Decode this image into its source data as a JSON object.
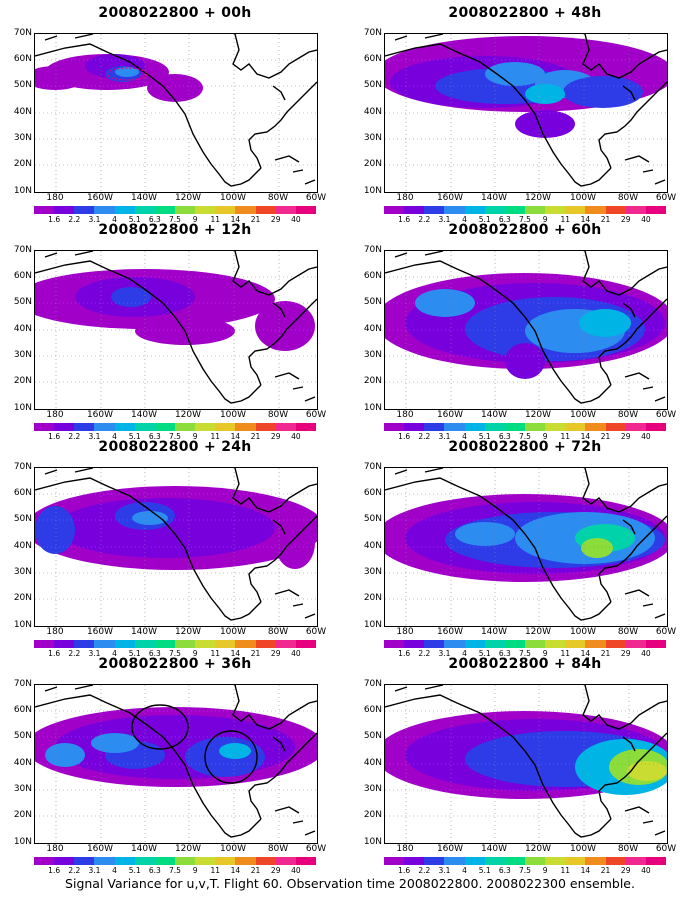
{
  "panels": [
    {
      "title": "2008022800 + 00h",
      "id": "p00"
    },
    {
      "title": "2008022800 + 48h",
      "id": "p48"
    },
    {
      "title": "2008022800 + 12h",
      "id": "p12"
    },
    {
      "title": "2008022800 + 60h",
      "id": "p60"
    },
    {
      "title": "2008022800 + 24h",
      "id": "p24"
    },
    {
      "title": "2008022800 + 72h",
      "id": "p72"
    },
    {
      "title": "2008022800 + 36h",
      "id": "p36"
    },
    {
      "title": "2008022800 + 84h",
      "id": "p84"
    }
  ],
  "lat_labels": [
    "70N",
    "60N",
    "50N",
    "40N",
    "30N",
    "20N",
    "10N"
  ],
  "lon_labels": [
    "180",
    "160W",
    "140W",
    "120W",
    "100W",
    "80W",
    "60W"
  ],
  "colorbar": {
    "labels": [
      "1.6",
      "2.2",
      "3.1",
      "4",
      "5.1",
      "6.3",
      "7.5",
      "9",
      "11",
      "14",
      "21",
      "29",
      "40"
    ],
    "colors": [
      "#a000c8",
      "#7800dc",
      "#2d3ce6",
      "#2d8cf0",
      "#00b4e6",
      "#00d2aa",
      "#00dc82",
      "#8cdc3c",
      "#c8dc32",
      "#e6c828",
      "#f08c1e",
      "#f04628",
      "#f02890",
      "#e6007d"
    ]
  },
  "caption": "Signal Variance for u,v,T. Flight 60. Observation time 2008022800. 2008022300 ensemble."
}
